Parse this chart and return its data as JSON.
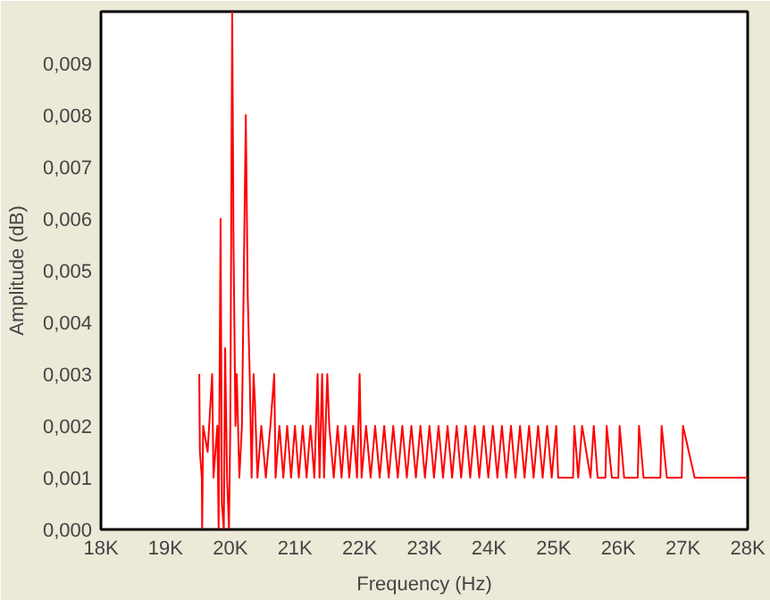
{
  "chart_data": {
    "type": "line",
    "xlabel": "Frequency (Hz)",
    "ylabel": "Amplitude (dB)",
    "xlim": [
      18000,
      28000
    ],
    "ylim": [
      0,
      0.01
    ],
    "xticks": [
      {
        "value": 18000,
        "label": "18K"
      },
      {
        "value": 19000,
        "label": "19K"
      },
      {
        "value": 20000,
        "label": "20K"
      },
      {
        "value": 21000,
        "label": "21K"
      },
      {
        "value": 22000,
        "label": "22K"
      },
      {
        "value": 23000,
        "label": "23K"
      },
      {
        "value": 24000,
        "label": "24K"
      },
      {
        "value": 25000,
        "label": "25K"
      },
      {
        "value": 26000,
        "label": "26K"
      },
      {
        "value": 27000,
        "label": "27K"
      },
      {
        "value": 28000,
        "label": "28K"
      }
    ],
    "yticks": [
      {
        "value": 0,
        "label": "0,000"
      },
      {
        "value": 0.001,
        "label": "0,001"
      },
      {
        "value": 0.002,
        "label": "0,002"
      },
      {
        "value": 0.003,
        "label": "0,003"
      },
      {
        "value": 0.004,
        "label": "0,004"
      },
      {
        "value": 0.005,
        "label": "0,005"
      },
      {
        "value": 0.006,
        "label": "0,006"
      },
      {
        "value": 0.007,
        "label": "0,007"
      },
      {
        "value": 0.008,
        "label": "0,008"
      },
      {
        "value": 0.009,
        "label": "0,009"
      }
    ],
    "grid": false,
    "marker": "none",
    "line_style": "solid",
    "series": [
      {
        "color": "#ff0000",
        "x": [
          19520,
          19530,
          19560,
          19565,
          19580,
          19650,
          19720,
          19740,
          19800,
          19820,
          19850,
          19870,
          19900,
          19920,
          19950,
          19980,
          20000,
          20030,
          20050,
          20080,
          20100,
          20140,
          20180,
          20240,
          20270,
          20300,
          20330,
          20360,
          20380,
          20420,
          20480,
          20550,
          20620,
          20680,
          20700,
          20760,
          20820,
          20880,
          20940,
          21000,
          21060,
          21120,
          21180,
          21240,
          21300,
          21350,
          21380,
          21420,
          21450,
          21500,
          21530,
          21600,
          21660,
          21720,
          21780,
          21840,
          21900,
          21960,
          22000,
          22030,
          22100,
          22170,
          22240,
          22310,
          22380,
          22450,
          22520,
          22590,
          22660,
          22730,
          22800,
          22870,
          22940,
          23010,
          23080,
          23150,
          23220,
          23290,
          23360,
          23430,
          23500,
          23570,
          23640,
          23710,
          23780,
          23850,
          23920,
          23990,
          24060,
          24130,
          24200,
          24270,
          24340,
          24410,
          24480,
          24550,
          24620,
          24690,
          24760,
          24830,
          24900,
          24970,
          25040,
          25070,
          25300,
          25320,
          25380,
          25440,
          25570,
          25620,
          25680,
          25800,
          25820,
          25900,
          26000,
          26020,
          26090,
          26300,
          26320,
          26390,
          26650,
          26670,
          26750,
          26980,
          27000,
          27180,
          28000
        ],
        "values": [
          0.003,
          0.0015,
          0.001,
          0,
          0.002,
          0.0015,
          0.003,
          0.001,
          0.002,
          0,
          0.006,
          0.0005,
          0,
          0.0035,
          0.001,
          0,
          0.002,
          0.01,
          0.0055,
          0.002,
          0.003,
          0.001,
          0.002,
          0.008,
          0.0045,
          0.003,
          0.001,
          0.003,
          0.0025,
          0.001,
          0.002,
          0.001,
          0.002,
          0.003,
          0.001,
          0.002,
          0.001,
          0.002,
          0.001,
          0.002,
          0.001,
          0.002,
          0.001,
          0.002,
          0.001,
          0.003,
          0.001,
          0.003,
          0.001,
          0.003,
          0.002,
          0.001,
          0.002,
          0.001,
          0.002,
          0.001,
          0.002,
          0.001,
          0.003,
          0.001,
          0.002,
          0.001,
          0.002,
          0.001,
          0.002,
          0.001,
          0.002,
          0.001,
          0.002,
          0.001,
          0.002,
          0.001,
          0.002,
          0.001,
          0.002,
          0.001,
          0.002,
          0.001,
          0.002,
          0.001,
          0.002,
          0.001,
          0.002,
          0.001,
          0.002,
          0.001,
          0.002,
          0.001,
          0.002,
          0.001,
          0.002,
          0.001,
          0.002,
          0.001,
          0.002,
          0.001,
          0.002,
          0.001,
          0.002,
          0.001,
          0.002,
          0.001,
          0.002,
          0.001,
          0.001,
          0.002,
          0.001,
          0.002,
          0.001,
          0.002,
          0.001,
          0.001,
          0.002,
          0.001,
          0.001,
          0.002,
          0.001,
          0.001,
          0.002,
          0.001,
          0.001,
          0.002,
          0.001,
          0.001,
          0.002,
          0.001,
          0.001
        ]
      }
    ]
  }
}
